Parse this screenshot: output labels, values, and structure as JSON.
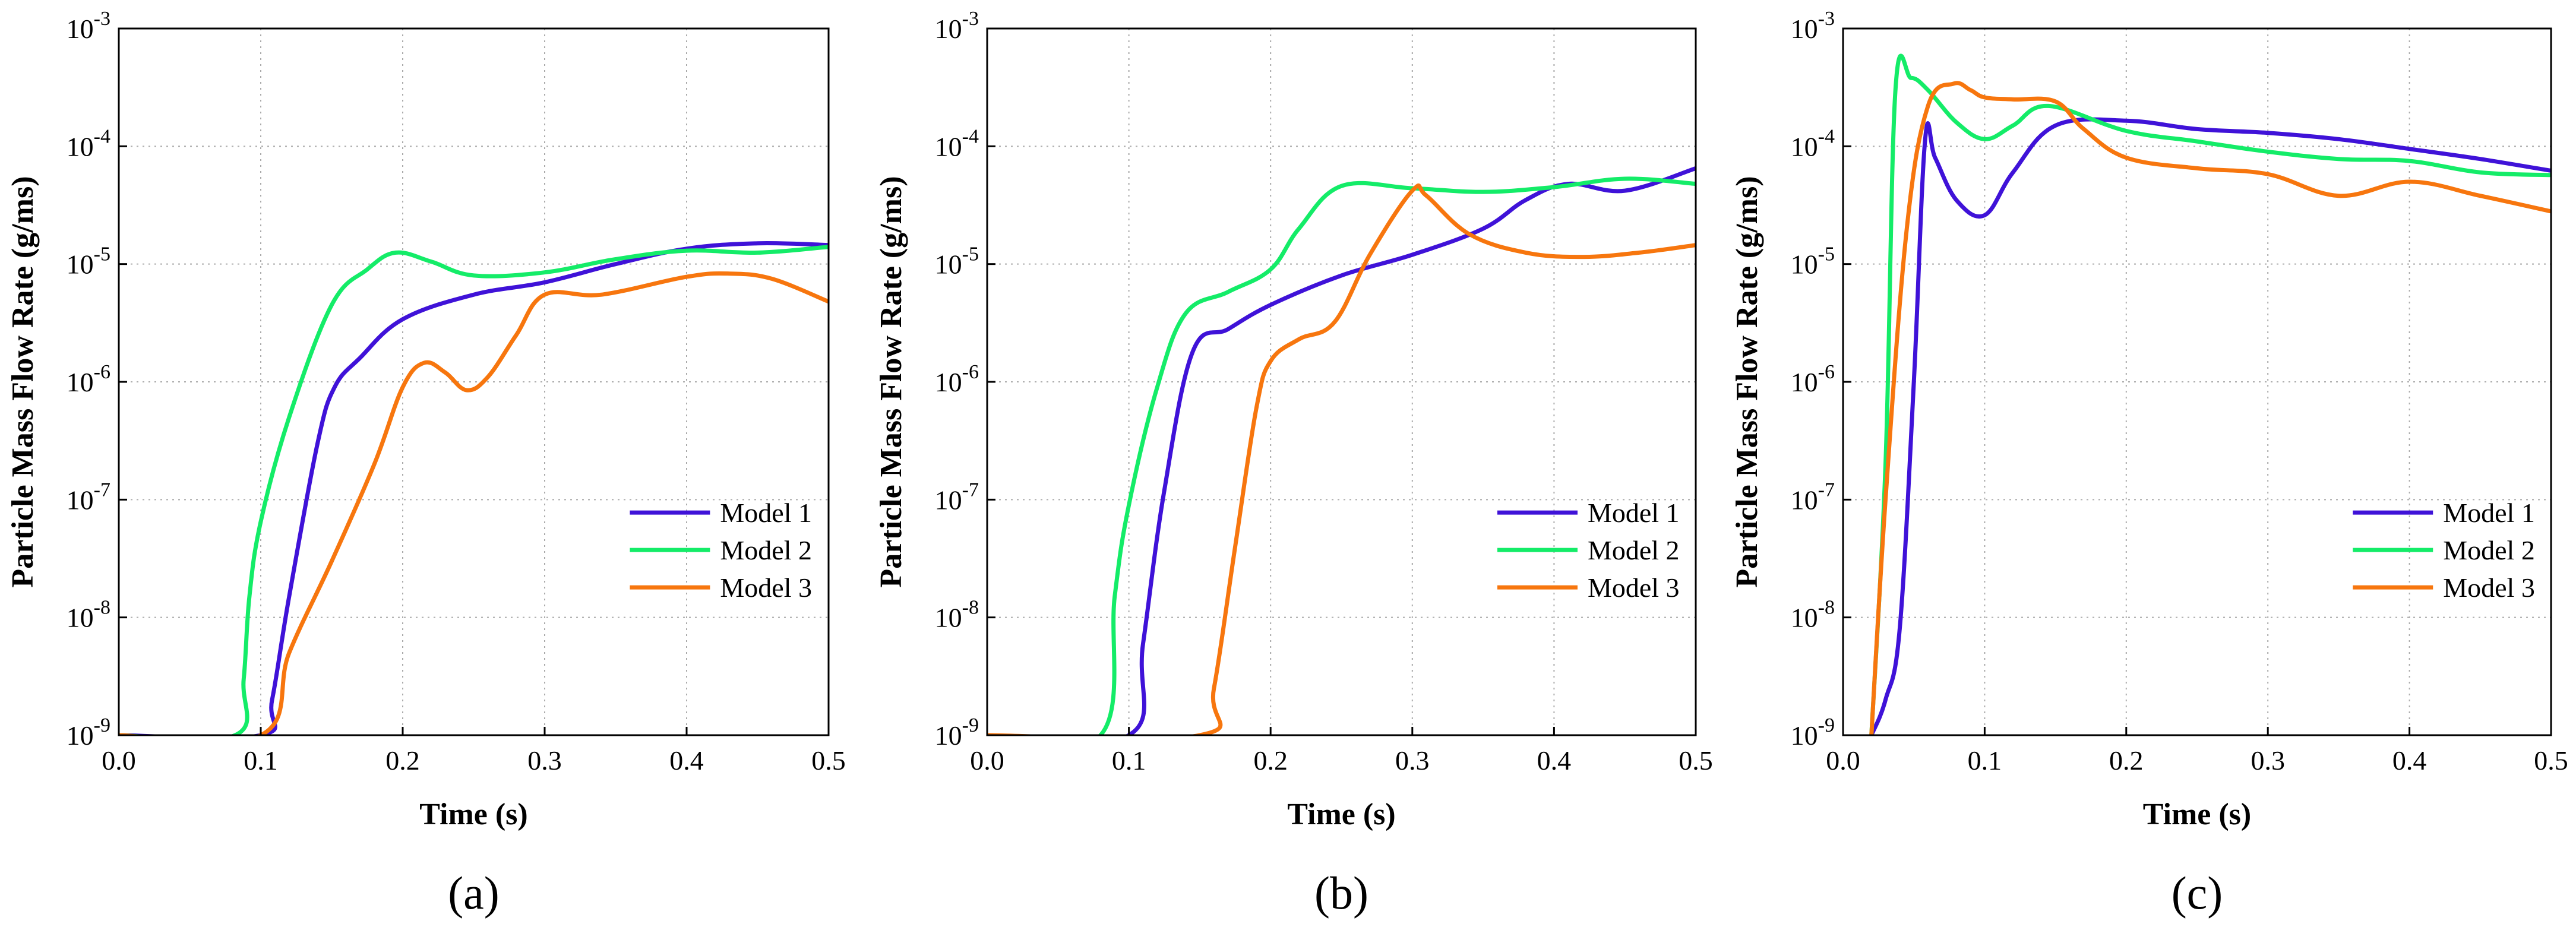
{
  "figure": {
    "series_styles": [
      {
        "name": "Model 1",
        "color": "#3f12d8"
      },
      {
        "name": "Model 2",
        "color": "#14ec68"
      },
      {
        "name": "Model 3",
        "color": "#f7760e"
      }
    ]
  },
  "chart_data": [
    {
      "panel_label": "(a)",
      "type": "line",
      "xlabel": "Time (s)",
      "ylabel": "Particle Mass Flow Rate (g/ms)",
      "xlim": [
        0.0,
        0.5
      ],
      "ylim": [
        1e-09,
        0.001
      ],
      "yscale": "log",
      "grid": true,
      "legend_position": "center-right",
      "x_ticks": [
        "0.0",
        "0.1",
        "0.2",
        "0.3",
        "0.4",
        "0.5"
      ],
      "y_ticks": [
        {
          "base": "10",
          "exp": "-9"
        },
        {
          "base": "10",
          "exp": "-8"
        },
        {
          "base": "10",
          "exp": "-7"
        },
        {
          "base": "10",
          "exp": "-6"
        },
        {
          "base": "10",
          "exp": "-5"
        },
        {
          "base": "10",
          "exp": "-4"
        },
        {
          "base": "10",
          "exp": "-3"
        }
      ],
      "series": [
        {
          "name": "Model 1",
          "x": [
            0,
            0.1,
            0.108,
            0.12,
            0.14,
            0.152,
            0.17,
            0.2,
            0.25,
            0.3,
            0.35,
            0.4,
            0.45,
            0.5
          ],
          "y": [
            1e-09,
            1e-09,
            2e-09,
            1.5e-08,
            3e-07,
            9e-07,
            1.6e-06,
            3.4e-06,
            5.5e-06,
            7e-06,
            1e-05,
            1.35e-05,
            1.5e-05,
            1.45e-05
          ]
        },
        {
          "name": "Model 2",
          "x": [
            0,
            0.082,
            0.088,
            0.092,
            0.1,
            0.12,
            0.15,
            0.175,
            0.195,
            0.22,
            0.25,
            0.3,
            0.35,
            0.4,
            0.45,
            0.5
          ],
          "y": [
            1e-09,
            1e-09,
            3e-09,
            1.5e-08,
            6.5e-08,
            5e-07,
            4.5e-06,
            9e-06,
            1.25e-05,
            1.05e-05,
            8e-06,
            8.5e-06,
            1.1e-05,
            1.3e-05,
            1.25e-05,
            1.4e-05
          ]
        },
        {
          "name": "Model 3",
          "x": [
            0,
            0.1,
            0.12,
            0.15,
            0.18,
            0.2,
            0.215,
            0.23,
            0.245,
            0.26,
            0.28,
            0.3,
            0.34,
            0.4,
            0.43,
            0.46,
            0.5
          ],
          "y": [
            1e-09,
            1e-09,
            5e-09,
            3e-08,
            2e-07,
            9e-07,
            1.45e-06,
            1.2e-06,
            8.5e-07,
            1.1e-06,
            2.5e-06,
            5.5e-06,
            5.5e-06,
            7.8e-06,
            8.3e-06,
            7.5e-06,
            4.8e-06
          ]
        }
      ]
    },
    {
      "panel_label": "(b)",
      "type": "line",
      "xlabel": "Time (s)",
      "ylabel": "Particle Mass Flow Rate (g/ms)",
      "xlim": [
        0.0,
        0.5
      ],
      "ylim": [
        1e-09,
        0.001
      ],
      "yscale": "log",
      "grid": true,
      "legend_position": "center-right",
      "x_ticks": [
        "0.0",
        "0.1",
        "0.2",
        "0.3",
        "0.4",
        "0.5"
      ],
      "y_ticks": [
        {
          "base": "10",
          "exp": "-9"
        },
        {
          "base": "10",
          "exp": "-8"
        },
        {
          "base": "10",
          "exp": "-7"
        },
        {
          "base": "10",
          "exp": "-6"
        },
        {
          "base": "10",
          "exp": "-5"
        },
        {
          "base": "10",
          "exp": "-4"
        },
        {
          "base": "10",
          "exp": "-3"
        }
      ],
      "series": [
        {
          "name": "Model 1",
          "x": [
            0,
            0.1,
            0.11,
            0.125,
            0.145,
            0.17,
            0.2,
            0.25,
            0.3,
            0.35,
            0.38,
            0.41,
            0.45,
            0.5
          ],
          "y": [
            1e-09,
            1e-09,
            6e-09,
            1.2e-07,
            1.8e-06,
            2.8e-06,
            4.5e-06,
            8e-06,
            1.2e-05,
            2e-05,
            3.5e-05,
            4.8e-05,
            4.2e-05,
            6.5e-05
          ]
        },
        {
          "name": "Model 2",
          "x": [
            0,
            0.08,
            0.09,
            0.1,
            0.12,
            0.14,
            0.17,
            0.2,
            0.22,
            0.25,
            0.3,
            0.35,
            0.4,
            0.45,
            0.5
          ],
          "y": [
            1e-09,
            1e-09,
            1.5e-08,
            9e-08,
            9e-07,
            3.8e-06,
            5.8e-06,
            9e-06,
            2e-05,
            4.6e-05,
            4.4e-05,
            4.1e-05,
            4.5e-05,
            5.3e-05,
            4.8e-05
          ]
        },
        {
          "name": "Model 3",
          "x": [
            0,
            0.15,
            0.16,
            0.175,
            0.19,
            0.2,
            0.22,
            0.245,
            0.27,
            0.3,
            0.31,
            0.34,
            0.38,
            0.42,
            0.46,
            0.5
          ],
          "y": [
            1e-09,
            1e-09,
            2.5e-09,
            4e-08,
            6e-07,
            1.5e-06,
            2.3e-06,
            3.2e-06,
            1.2e-05,
            4.2e-05,
            3.8e-05,
            1.8e-05,
            1.25e-05,
            1.15e-05,
            1.25e-05,
            1.45e-05
          ]
        }
      ]
    },
    {
      "panel_label": "(c)",
      "type": "line",
      "xlabel": "Time (s)",
      "ylabel": "Particle Mass Flow Rate (g/ms)",
      "xlim": [
        0.0,
        0.5
      ],
      "ylim": [
        1e-09,
        0.001
      ],
      "yscale": "log",
      "grid": true,
      "legend_position": "center-right",
      "x_ticks": [
        "0.0",
        "0.1",
        "0.2",
        "0.3",
        "0.4",
        "0.5"
      ],
      "y_ticks": [
        {
          "base": "10",
          "exp": "-9"
        },
        {
          "base": "10",
          "exp": "-8"
        },
        {
          "base": "10",
          "exp": "-7"
        },
        {
          "base": "10",
          "exp": "-6"
        },
        {
          "base": "10",
          "exp": "-5"
        },
        {
          "base": "10",
          "exp": "-4"
        },
        {
          "base": "10",
          "exp": "-3"
        }
      ],
      "series": [
        {
          "name": "Model 1",
          "x": [
            0.02,
            0.03,
            0.04,
            0.05,
            0.058,
            0.065,
            0.08,
            0.1,
            0.12,
            0.15,
            0.2,
            0.25,
            0.3,
            0.35,
            0.4,
            0.45,
            0.5
          ],
          "y": [
            1e-09,
            2e-09,
            8e-09,
            1e-06,
            0.000115,
            8e-05,
            3.5e-05,
            2.6e-05,
            6e-05,
            0.00015,
            0.000165,
            0.00014,
            0.00013,
            0.000115,
            9.5e-05,
            7.8e-05,
            6.2e-05
          ]
        },
        {
          "name": "Model 2",
          "x": [
            0.02,
            0.03,
            0.037,
            0.048,
            0.06,
            0.08,
            0.1,
            0.12,
            0.145,
            0.2,
            0.25,
            0.3,
            0.35,
            0.4,
            0.45,
            0.5
          ],
          "y": [
            1e-09,
            2e-07,
            0.0003,
            0.00038,
            0.0003,
            0.00016,
            0.000115,
            0.00015,
            0.00022,
            0.000135,
            0.00011,
            9e-05,
            7.8e-05,
            7.5e-05,
            6e-05,
            5.7e-05
          ]
        },
        {
          "name": "Model 3",
          "x": [
            0.02,
            0.03,
            0.045,
            0.06,
            0.078,
            0.09,
            0.1,
            0.12,
            0.15,
            0.17,
            0.2,
            0.25,
            0.3,
            0.35,
            0.4,
            0.45,
            0.5
          ],
          "y": [
            1e-09,
            1e-07,
            2e-05,
            0.00022,
            0.00034,
            0.0003,
            0.00026,
            0.00025,
            0.00024,
            0.00014,
            8e-05,
            6.5e-05,
            5.8e-05,
            3.8e-05,
            5e-05,
            3.8e-05,
            2.8e-05
          ]
        }
      ]
    }
  ]
}
